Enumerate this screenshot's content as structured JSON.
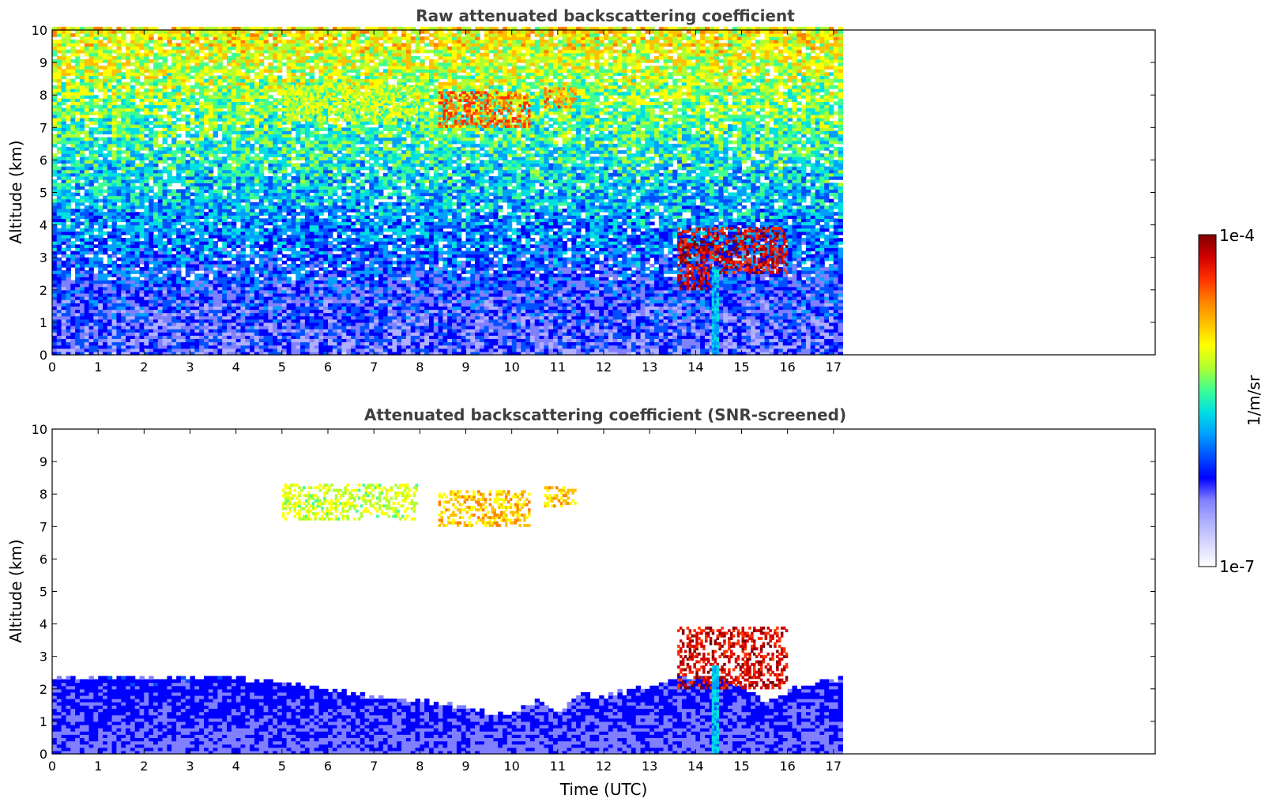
{
  "chart_data": [
    {
      "type": "heatmap",
      "title": "Raw attenuated backscattering coefficient",
      "xlabel": "",
      "ylabel": "Altitude (km)",
      "xlim": [
        0,
        24
      ],
      "ylim": [
        0,
        10
      ],
      "xticks": [
        "0",
        "1",
        "2",
        "3",
        "4",
        "5",
        "6",
        "7",
        "8",
        "9",
        "10",
        "11",
        "12",
        "13",
        "14",
        "15",
        "16",
        "17"
      ],
      "yticks": [
        "0",
        "1",
        "2",
        "3",
        "4",
        "5",
        "6",
        "7",
        "8",
        "9",
        "10"
      ],
      "data_extent_hours": [
        0,
        17.1
      ],
      "mode": "raw",
      "features": [
        {
          "kind": "boundary-layer",
          "time": [
            0,
            17.1
          ],
          "altitude_km": [
            0,
            2.3
          ],
          "level": 0.15
        },
        {
          "kind": "noise-upper",
          "time": [
            0,
            17.1
          ],
          "altitude_km": [
            2.3,
            10
          ],
          "level": 0.45
        },
        {
          "kind": "cirrus",
          "time": [
            5.0,
            7.9
          ],
          "altitude_km": [
            7.2,
            8.3
          ],
          "level": 0.7
        },
        {
          "kind": "cirrus",
          "time": [
            8.4,
            10.4
          ],
          "altitude_km": [
            7.0,
            8.1
          ],
          "level": 0.9
        },
        {
          "kind": "cirrus",
          "time": [
            10.7,
            11.4
          ],
          "altitude_km": [
            7.6,
            8.2
          ],
          "level": 0.85
        },
        {
          "kind": "water-cloud",
          "time": [
            13.6,
            14.4
          ],
          "altitude_km": [
            2.0,
            3.9
          ],
          "level": 1.0
        },
        {
          "kind": "water-cloud",
          "time": [
            14.4,
            16.0
          ],
          "altitude_km": [
            2.5,
            3.9
          ],
          "level": 1.0
        },
        {
          "kind": "rain-column",
          "time": [
            14.35,
            14.5
          ],
          "altitude_km": [
            0,
            2.7
          ],
          "level": 0.5
        }
      ]
    },
    {
      "type": "heatmap",
      "title": "Attenuated backscattering coefficient (SNR-screened)",
      "xlabel": "Time (UTC)",
      "ylabel": "Altitude (km)",
      "xlim": [
        0,
        24
      ],
      "ylim": [
        0,
        10
      ],
      "xticks": [
        "0",
        "1",
        "2",
        "3",
        "4",
        "5",
        "6",
        "7",
        "8",
        "9",
        "10",
        "11",
        "12",
        "13",
        "14",
        "15",
        "16",
        "17"
      ],
      "yticks": [
        "0",
        "1",
        "2",
        "3",
        "4",
        "5",
        "6",
        "7",
        "8",
        "9",
        "10"
      ],
      "data_extent_hours": [
        0,
        17.1
      ],
      "mode": "screened",
      "boundary_layer_top_km": [
        [
          0,
          2.3
        ],
        [
          1,
          2.3
        ],
        [
          2,
          2.3
        ],
        [
          3,
          2.3
        ],
        [
          4,
          2.3
        ],
        [
          5,
          2.2
        ],
        [
          6,
          1.9
        ],
        [
          7,
          1.7
        ],
        [
          8,
          1.6
        ],
        [
          8.5,
          1.5
        ],
        [
          9,
          1.3
        ],
        [
          10,
          1.2
        ],
        [
          10.5,
          1.6
        ],
        [
          11,
          1.3
        ],
        [
          11.5,
          1.8
        ],
        [
          12,
          1.7
        ],
        [
          13,
          2.1
        ],
        [
          14,
          2.3
        ],
        [
          15,
          2.0
        ],
        [
          15.5,
          1.5
        ],
        [
          16,
          1.9
        ],
        [
          17.1,
          2.3
        ]
      ],
      "features": [
        {
          "kind": "cirrus",
          "time": [
            5.0,
            7.9
          ],
          "altitude_km": [
            7.2,
            8.3
          ],
          "level": 0.7
        },
        {
          "kind": "cirrus",
          "time": [
            8.4,
            10.4
          ],
          "altitude_km": [
            7.0,
            8.1
          ],
          "level": 0.8
        },
        {
          "kind": "cirrus",
          "time": [
            10.7,
            11.4
          ],
          "altitude_km": [
            7.6,
            8.2
          ],
          "level": 0.8
        },
        {
          "kind": "water-cloud",
          "time": [
            13.6,
            16.0
          ],
          "altitude_km": [
            2.0,
            3.9
          ],
          "level": 1.0
        },
        {
          "kind": "rain-column",
          "time": [
            14.35,
            14.5
          ],
          "altitude_km": [
            0,
            2.7
          ],
          "level": 0.5
        }
      ]
    }
  ],
  "colorbar": {
    "min_label": "1e-7",
    "max_label": "1e-4",
    "unit_label": "1/m/sr",
    "colors": [
      "#ffffff",
      "#d8d8ff",
      "#b0b0ff",
      "#8080ff",
      "#0000ff",
      "#0050ff",
      "#00a0ff",
      "#00e0e0",
      "#40ff90",
      "#b0ff30",
      "#ffff00",
      "#ffc000",
      "#ff8000",
      "#ff3000",
      "#d00000",
      "#800000"
    ]
  }
}
